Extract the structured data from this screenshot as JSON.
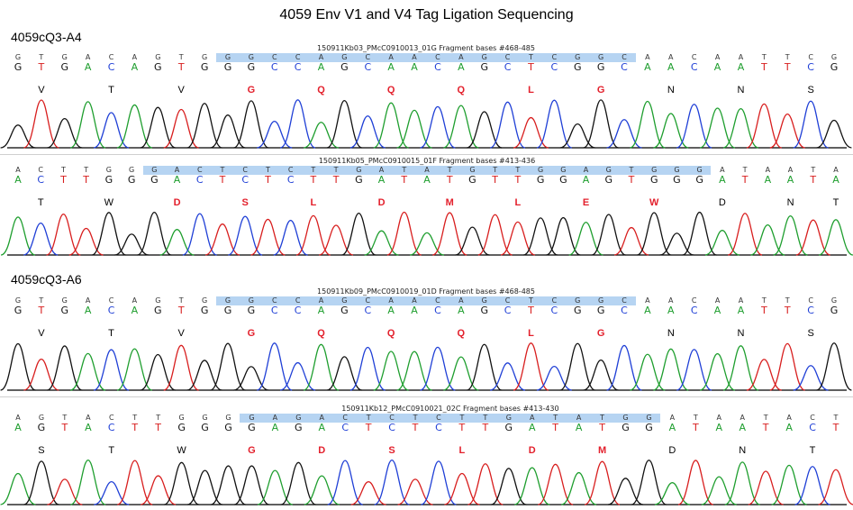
{
  "title": "4059 Env V1 and V4 Tag Ligation Sequencing",
  "colors": {
    "A": "#1e9e2e",
    "C": "#1f3fd6",
    "G": "#111111",
    "T": "#d81e1e",
    "highlight": "#b6d4f2",
    "aa_hi": "#e3202c"
  },
  "samples": [
    {
      "label": "4059cQ3-A4"
    },
    {
      "label": "4059cQ3-A6"
    }
  ],
  "traces": [
    {
      "fragment": "150911Kb03_PMcC0910013_01G Fragment bases #468-485",
      "called": "GTGACAGTGGGCCAGCAACAGCTCGGCAACAATTCG",
      "seq": "GTGACAGTGGGCCAGCAACAGCTCGGCAACAATTCG",
      "hl_start": 9,
      "hl_end": 26,
      "aa": [
        "V",
        "T",
        "V",
        "G",
        "Q",
        "Q",
        "Q",
        "L",
        "G",
        "N",
        "N",
        "S"
      ],
      "aa_hi": [
        false,
        false,
        false,
        true,
        true,
        true,
        true,
        true,
        true,
        false,
        false,
        false
      ]
    },
    {
      "fragment": "150911Kb05_PMcC0910015_01F Fragment bases #413-436",
      "called": "ACTTGGGACTCTCTTGATATGTTGGAGTGGGATAATA",
      "seq": "ACTTGGGACTCTCTTGATATGTTGGAGTGGGATAATA",
      "hl_start": 6,
      "hl_end": 30,
      "aa": [
        "T",
        "W",
        "D",
        "S",
        "L",
        "D",
        "M",
        "L",
        "E",
        "W",
        "D",
        "N",
        "T"
      ],
      "aa_hi": [
        false,
        false,
        true,
        true,
        true,
        true,
        true,
        true,
        true,
        true,
        false,
        false,
        false
      ]
    },
    {
      "fragment": "150911Kb09_PMcC0910019_01D Fragment bases #468-485",
      "called": "GTGACAGTGGGCCAGCAACAGCTCGGCAACAATTCG",
      "seq": "GTGACAGTGGGCCAGCAACAGCTCGGCAACAATTCG",
      "hl_start": 9,
      "hl_end": 26,
      "aa": [
        "V",
        "T",
        "V",
        "G",
        "Q",
        "Q",
        "Q",
        "L",
        "G",
        "N",
        "N",
        "S"
      ],
      "aa_hi": [
        false,
        false,
        false,
        true,
        true,
        true,
        true,
        true,
        true,
        false,
        false,
        false
      ]
    },
    {
      "fragment": "150911Kb12_PMcC0910021_02C Fragment bases #413-430",
      "called": "AGTACTTGGGGAGACTCTCTTGATATGGATAATACT",
      "seq": "AGTACTTGGGGAGACTCTCTTGATATGGATAATACT",
      "hl_start": 10,
      "hl_end": 27,
      "aa": [
        "S",
        "T",
        "W",
        "G",
        "D",
        "S",
        "L",
        "D",
        "M",
        "D",
        "N",
        "T"
      ],
      "aa_hi": [
        false,
        false,
        false,
        true,
        true,
        true,
        true,
        true,
        true,
        false,
        false,
        false
      ]
    }
  ]
}
